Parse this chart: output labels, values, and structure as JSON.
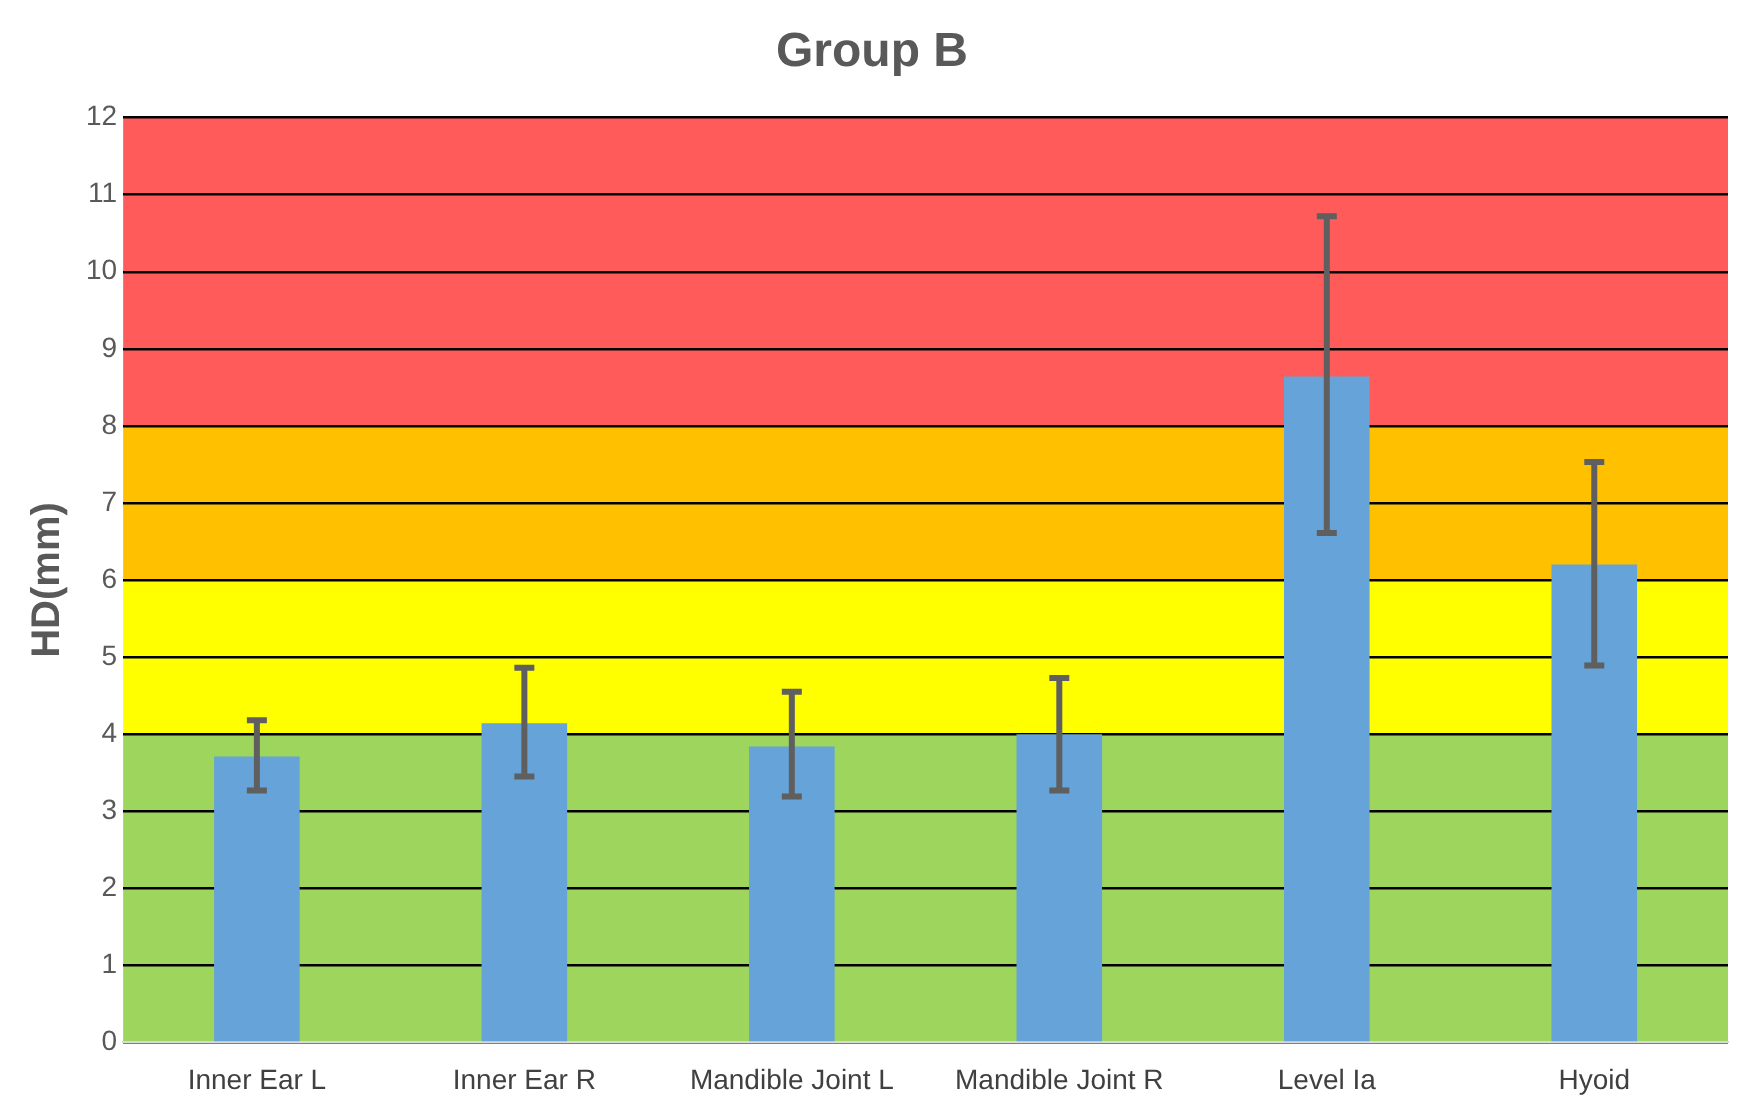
{
  "chart_data": {
    "type": "bar",
    "title": "Group B",
    "ylabel": "HD(mm)",
    "categories": [
      "Inner Ear L",
      "Inner Ear R",
      "Mandible Joint L",
      "Mandible Joint R",
      "Level Ia",
      "Hyoid"
    ],
    "values": [
      3.71,
      4.14,
      3.84,
      4.0,
      8.64,
      6.2
    ],
    "errors": [
      [
        3.27,
        4.18
      ],
      [
        3.45,
        4.86
      ],
      [
        3.19,
        4.55
      ],
      [
        3.27,
        4.73
      ],
      [
        6.61,
        10.72
      ],
      [
        4.89,
        7.53
      ]
    ],
    "color": "#66a3d8",
    "ylim": [
      0,
      12
    ],
    "yticks": [
      0,
      1,
      2,
      3,
      4,
      5,
      6,
      7,
      8,
      9,
      10,
      11,
      12
    ],
    "grid": "y",
    "bands": [
      {
        "axis": "y",
        "from": 0,
        "to": 4,
        "color": "#9dd55d"
      },
      {
        "axis": "y",
        "from": 4,
        "to": 6,
        "color": "#ffff00"
      },
      {
        "axis": "y",
        "from": 6,
        "to": 8,
        "color": "#ffc000"
      },
      {
        "axis": "y",
        "from": 8,
        "to": 12,
        "color": "#ff5b5b"
      }
    ]
  }
}
